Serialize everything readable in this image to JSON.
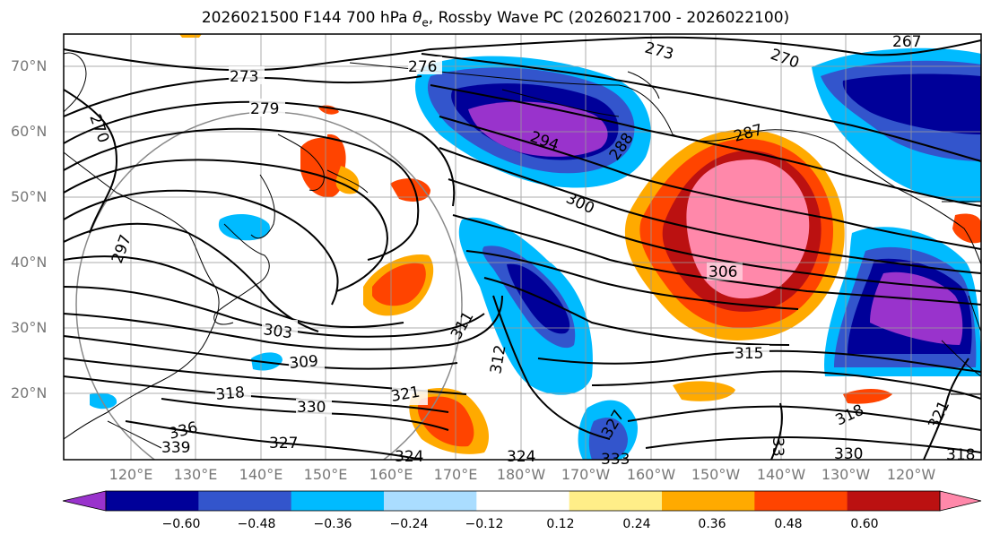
{
  "title": {
    "prefix": "2026021500 F144 700 hPa ",
    "theta": "θ",
    "theta_sub": "e",
    "suffix": ", Rossby Wave PC (2026021700 - 2026022100)"
  },
  "axes": {
    "lat_labels": [
      "70°N",
      "60°N",
      "50°N",
      "40°N",
      "30°N",
      "20°N"
    ],
    "lon_labels": [
      "120°E",
      "130°E",
      "140°E",
      "150°E",
      "160°E",
      "170°E",
      "180°W",
      "170°W",
      "160°W",
      "150°W",
      "140°W",
      "130°W",
      "120°W"
    ]
  },
  "colorbar": {
    "colors": [
      "#9933cc",
      "#000099",
      "#3355cc",
      "#00bbff",
      "#aaddff",
      "#ffffff",
      "#ffee88",
      "#ffaa00",
      "#ff4400",
      "#bb1111",
      "#ff88aa"
    ],
    "ticks": [
      "−0.60",
      "−0.48",
      "−0.36",
      "−0.24",
      "−0.12",
      "0.12",
      "0.24",
      "0.36",
      "0.48",
      "0.60"
    ]
  },
  "contour_labels": [
    "273",
    "279",
    "270",
    "276",
    "273",
    "270",
    "267",
    "287",
    "294",
    "288",
    "300",
    "306",
    "297",
    "303",
    "309",
    "311",
    "312",
    "315",
    "318",
    "321",
    "330",
    "336",
    "339",
    "327",
    "324",
    "333",
    "327",
    "33",
    "318",
    "330",
    "321",
    "318",
    "324"
  ],
  "colors": {
    "contour": "#000000",
    "coast": "#000000",
    "grid": "#999999",
    "axis_label": "#777777"
  }
}
